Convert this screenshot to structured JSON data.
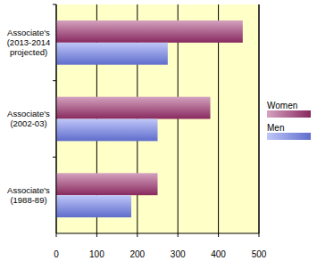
{
  "chart_data": {
    "type": "bar",
    "orientation": "horizontal",
    "categories": [
      "Associate's (1988-89)",
      "Associate's (2002-03)",
      "Associate's (2013-2014 projected)"
    ],
    "series": [
      {
        "name": "Women",
        "color": "#a03070",
        "values": [
          250,
          380,
          460
        ]
      },
      {
        "name": "Men",
        "color": "#7080f0",
        "values": [
          185,
          250,
          275
        ]
      }
    ],
    "xlim": [
      0,
      500
    ],
    "xticks": [
      0,
      100,
      200,
      300,
      400,
      500
    ],
    "grid": true,
    "legend": "right"
  }
}
